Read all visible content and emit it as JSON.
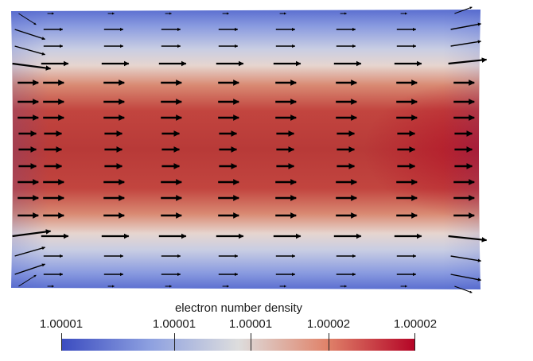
{
  "legend": {
    "title": "electron number density",
    "ticks": [
      "1.00001",
      "1.00001",
      "1.00001",
      "1.00002",
      "1.00002"
    ],
    "tick_positions": [
      0.0,
      0.32,
      0.535,
      0.755,
      1.0
    ]
  },
  "colormap": {
    "low": "#3b4cc0",
    "mid": "#dddddd",
    "high": "#b40426"
  },
  "field": {
    "arrow_color": "#000000"
  }
}
